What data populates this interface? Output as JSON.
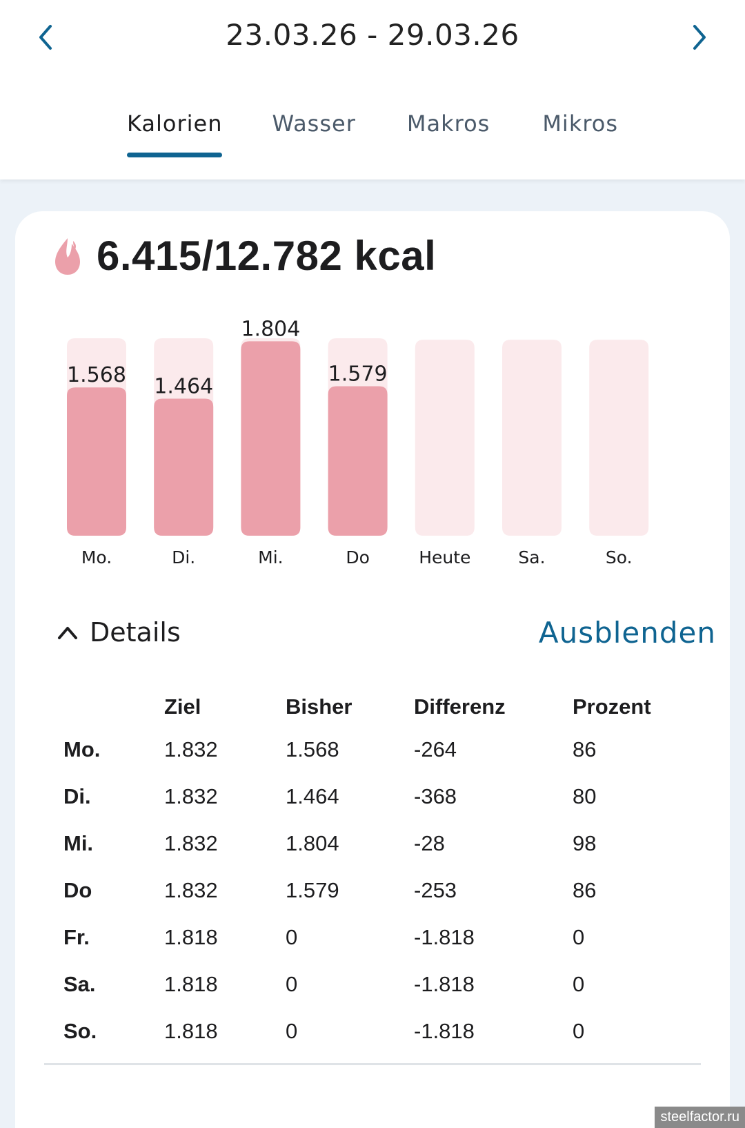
{
  "header": {
    "date_range": "23.03.26 - 29.03.26",
    "prev_icon": "chevron-left-icon",
    "next_icon": "chevron-right-icon",
    "accent_color": "#0f6491"
  },
  "tabs": [
    {
      "label": "Kalorien",
      "active": true
    },
    {
      "label": "Wasser",
      "active": false
    },
    {
      "label": "Makros",
      "active": false
    },
    {
      "label": "Mikros",
      "active": false
    }
  ],
  "summary": {
    "icon": "flame-icon",
    "text": "6.415/12.782 kcal",
    "icon_color": "#eba0aa"
  },
  "chart_data": {
    "type": "bar",
    "title": "6.415/12.782 kcal",
    "categories": [
      "Mo.",
      "Di.",
      "Mi.",
      "Do",
      "Heute",
      "Sa.",
      "So."
    ],
    "series": [
      {
        "name": "Bisher",
        "values": [
          1568,
          1464,
          1804,
          1579,
          0,
          0,
          0
        ],
        "color": "#eba0aa"
      },
      {
        "name": "Ziel",
        "values": [
          1832,
          1832,
          1832,
          1832,
          1818,
          1818,
          1818
        ],
        "color": "#fbeaec"
      }
    ],
    "data_labels": [
      "1.568",
      "1.464",
      "1.804",
      "1.579",
      "",
      "",
      ""
    ],
    "xlabel": "",
    "ylabel": "",
    "ylim": [
      0,
      1832
    ],
    "grid": false,
    "legend": "none"
  },
  "details": {
    "toggle_icon": "chevron-up-icon",
    "label": "Details",
    "hide_label": "Ausblenden",
    "columns": [
      "",
      "Ziel",
      "Bisher",
      "Differenz",
      "Prozent"
    ],
    "rows": [
      [
        "Mo.",
        "1.832",
        "1.568",
        "-264",
        "86"
      ],
      [
        "Di.",
        "1.832",
        "1.464",
        "-368",
        "80"
      ],
      [
        "Mi.",
        "1.832",
        "1.804",
        "-28",
        "98"
      ],
      [
        "Do",
        "1.832",
        "1.579",
        "-253",
        "86"
      ],
      [
        "Fr.",
        "1.818",
        "0",
        "-1.818",
        "0"
      ],
      [
        "Sa.",
        "1.818",
        "0",
        "-1.818",
        "0"
      ],
      [
        "So.",
        "1.818",
        "0",
        "-1.818",
        "0"
      ]
    ]
  },
  "watermark": "steelfactor.ru"
}
